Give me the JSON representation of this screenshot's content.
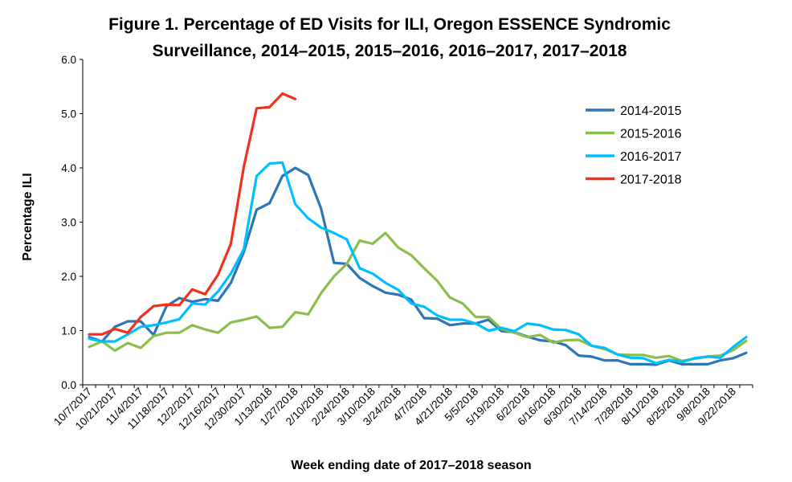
{
  "chart_data": {
    "type": "line",
    "title_line1": "Figure 1. Percentage of ED Visits for ILI, Oregon ESSENCE Syndromic",
    "title_line2": "Surveillance, 2014–2015, 2015–2016, 2016–2017, 2017–2018",
    "xlabel": "Week ending date of 2017–2018 season",
    "ylabel": "Percentage ILI",
    "ylim": [
      0,
      6
    ],
    "yticks": [
      "0.0",
      "1.0",
      "2.0",
      "3.0",
      "4.0",
      "5.0",
      "6.0"
    ],
    "grid": false,
    "legend_position": "top-right",
    "x_tick_labels": [
      "10/7/2017",
      "10/21/2017",
      "11/4/2017",
      "11/18/2017",
      "12/2/2017",
      "12/16/2017",
      "12/30/2017",
      "1/13/2018",
      "1/27/2018",
      "2/10/2018",
      "2/24/2018",
      "3/10/2018",
      "3/24/2018",
      "4/7/2018",
      "4/21/2018",
      "5/5/2018",
      "5/19/2018",
      "6/2/2018",
      "6/16/2018",
      "6/30/2018",
      "7/14/2018",
      "7/28/2018",
      "8/11/2018",
      "8/25/2018",
      "9/8/2018",
      "9/22/2018"
    ],
    "series": [
      {
        "name": "2014-2015",
        "color": "#2E75B6",
        "values": [
          0.88,
          0.8,
          1.07,
          1.17,
          1.17,
          0.92,
          1.45,
          1.6,
          1.53,
          1.58,
          1.55,
          1.88,
          2.45,
          3.23,
          3.35,
          3.85,
          4.0,
          3.87,
          3.25,
          2.25,
          2.23,
          1.97,
          1.82,
          1.7,
          1.66,
          1.57,
          1.23,
          1.22,
          1.1,
          1.13,
          1.13,
          1.2,
          0.99,
          0.97,
          0.89,
          0.82,
          0.8,
          0.73,
          0.54,
          0.52,
          0.45,
          0.45,
          0.38,
          0.38,
          0.37,
          0.45,
          0.38,
          0.38,
          0.38,
          0.45,
          0.49,
          0.59
        ]
      },
      {
        "name": "2015-2016",
        "color": "#8DBE4D",
        "values": [
          0.7,
          0.8,
          0.63,
          0.77,
          0.68,
          0.9,
          0.96,
          0.96,
          1.1,
          1.02,
          0.96,
          1.15,
          1.2,
          1.26,
          1.05,
          1.07,
          1.34,
          1.3,
          1.69,
          2.0,
          2.23,
          2.66,
          2.6,
          2.8,
          2.53,
          2.39,
          2.15,
          1.92,
          1.61,
          1.5,
          1.25,
          1.25,
          1.03,
          0.96,
          0.88,
          0.92,
          0.78,
          0.82,
          0.83,
          0.72,
          0.66,
          0.56,
          0.55,
          0.55,
          0.5,
          0.53,
          0.44,
          0.48,
          0.52,
          0.54,
          0.64,
          0.81
        ]
      },
      {
        "name": "2016-2017",
        "color": "#00BFFF",
        "values": [
          0.85,
          0.8,
          0.8,
          0.93,
          1.07,
          1.1,
          1.15,
          1.21,
          1.5,
          1.48,
          1.72,
          2.05,
          2.5,
          3.85,
          4.08,
          4.1,
          3.33,
          3.07,
          2.9,
          2.8,
          2.68,
          2.15,
          2.05,
          1.88,
          1.75,
          1.5,
          1.44,
          1.28,
          1.2,
          1.2,
          1.13,
          1.0,
          1.05,
          0.99,
          1.13,
          1.1,
          1.02,
          1.01,
          0.93,
          0.72,
          0.68,
          0.56,
          0.5,
          0.49,
          0.4,
          0.46,
          0.42,
          0.49,
          0.52,
          0.5,
          0.7,
          0.88
        ]
      },
      {
        "name": "2017-2018",
        "color": "#F0311F",
        "values": [
          0.93,
          0.93,
          1.03,
          0.96,
          1.25,
          1.45,
          1.48,
          1.47,
          1.76,
          1.67,
          2.03,
          2.6,
          4.02,
          5.1,
          5.12,
          5.37,
          5.27
        ]
      }
    ]
  }
}
